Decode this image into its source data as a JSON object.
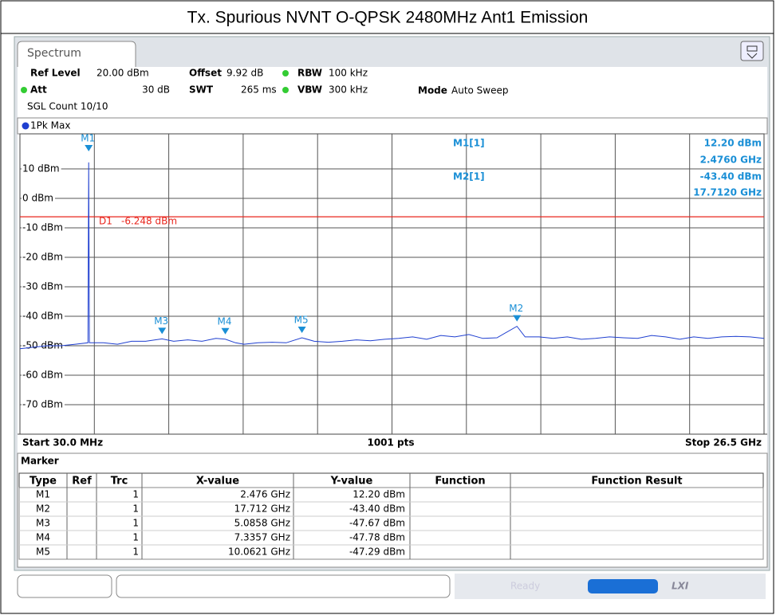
{
  "title": "Tx. Spurious NVNT O-QPSK 2480MHz Ant1 Emission",
  "tab": "Spectrum",
  "settings": {
    "ref_level_label": "Ref Level",
    "ref_level": "20.00 dBm",
    "offset_label": "Offset",
    "offset": "9.92 dB",
    "rbw_label": "RBW",
    "rbw": "100 kHz",
    "att_label": "Att",
    "att": "30 dB",
    "swt_label": "SWT",
    "swt": "265 ms",
    "vbw_label": "VBW",
    "vbw": "300 kHz",
    "mode_label": "Mode",
    "mode": "Auto Sweep",
    "count": "SGL Count 10/10"
  },
  "trace_label": "1Pk Max",
  "readout": [
    {
      "name": "M1[1]",
      "level": "12.20 dBm",
      "freq": "2.4760 GHz"
    },
    {
      "name": "M2[1]",
      "level": "-43.40 dBm",
      "freq": "17.7120 GHz"
    }
  ],
  "chart_data": {
    "type": "line",
    "xlim": [
      0.03,
      26.5
    ],
    "ylim": [
      -80,
      20
    ],
    "yticks": [
      {
        "value": 10,
        "label": "10 dBm"
      },
      {
        "value": 0,
        "label": "0 dBm"
      },
      {
        "value": -10,
        "label": "-10 dBm"
      },
      {
        "value": -20,
        "label": "-20 dBm"
      },
      {
        "value": -30,
        "label": "-30 dBm"
      },
      {
        "value": -40,
        "label": "-40 dBm"
      },
      {
        "value": -50,
        "label": "-50 dBm"
      },
      {
        "value": -60,
        "label": "-60 dBm"
      },
      {
        "value": -70,
        "label": "-70 dBm"
      }
    ],
    "grid": true,
    "series": [
      {
        "color": "#1f3fd0",
        "x": [
          0.03,
          0.5,
          1.0,
          1.5,
          2.0,
          2.45,
          2.476,
          2.5,
          3.0,
          3.5,
          4.0,
          4.5,
          5.0858,
          5.5,
          6.0,
          6.5,
          7.0,
          7.3357,
          7.7,
          8.0,
          8.5,
          9.0,
          9.5,
          10.0621,
          10.5,
          11,
          11.5,
          12,
          12.5,
          13,
          13.5,
          14,
          14.5,
          15,
          15.5,
          16,
          16.5,
          17,
          17.712,
          18,
          18.5,
          19,
          19.5,
          20,
          20.5,
          21,
          21.5,
          22,
          22.5,
          23,
          23.5,
          24,
          24.5,
          25,
          25.5,
          26,
          26.5
        ],
        "values": [
          -51,
          -50.5,
          -50,
          -50,
          -49.5,
          -49,
          12.2,
          -49,
          -49,
          -49.5,
          -48.5,
          -48.5,
          -47.67,
          -48.5,
          -48,
          -48.5,
          -47.5,
          -47.78,
          -49,
          -49.5,
          -49,
          -48.8,
          -49,
          -47.29,
          -48.5,
          -48.8,
          -48.5,
          -48,
          -48.3,
          -47.8,
          -47.5,
          -47,
          -47.8,
          -46.5,
          -47,
          -46.2,
          -47.5,
          -47.3,
          -43.4,
          -47,
          -47,
          -47.5,
          -47,
          -47.8,
          -47.5,
          -47,
          -47.3,
          -47.5,
          -46.5,
          -47,
          -47.8,
          -47,
          -47.5,
          -47,
          -46.8,
          -47,
          -47.5
        ]
      }
    ],
    "display_line": {
      "name": "D1",
      "value": -6.248,
      "label": "-6.248 dBm",
      "color": "#e8251c"
    },
    "markers": [
      {
        "name": "M1",
        "x": 2.476,
        "y": 12.2
      },
      {
        "name": "M2",
        "x": 17.712,
        "y": -43.4
      },
      {
        "name": "M3",
        "x": 5.0858,
        "y": -47.67
      },
      {
        "name": "M4",
        "x": 7.3357,
        "y": -47.78
      },
      {
        "name": "M5",
        "x": 10.0621,
        "y": -47.29
      }
    ],
    "marker_color": "#1a8fd6",
    "start": "Start 30.0 MHz",
    "points": "1001 pts",
    "stop": "Stop 26.5 GHz"
  },
  "marker_table": {
    "title": "Marker",
    "columns": [
      "Type",
      "Ref",
      "Trc",
      "X-value",
      "Y-value",
      "Function",
      "Function Result"
    ],
    "rows": [
      {
        "type": "M1",
        "trc": "1",
        "x": "2.476 GHz",
        "y": "12.20 dBm"
      },
      {
        "type": "M2",
        "trc": "1",
        "x": "17.712 GHz",
        "y": "-43.40 dBm"
      },
      {
        "type": "M3",
        "trc": "1",
        "x": "5.0858 GHz",
        "y": "-47.67 dBm"
      },
      {
        "type": "M4",
        "trc": "1",
        "x": "7.3357 GHz",
        "y": "-47.78 dBm"
      },
      {
        "type": "M5",
        "trc": "1",
        "x": "10.0621 GHz",
        "y": "-47.29 dBm"
      }
    ]
  },
  "status": {
    "state": "Ready",
    "lxi": "LXI"
  }
}
